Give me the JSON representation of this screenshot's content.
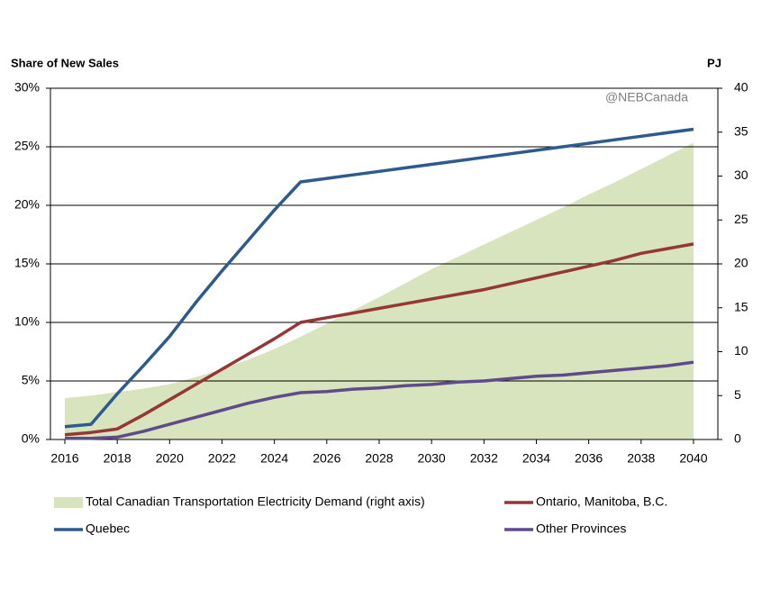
{
  "chart_data": {
    "type": "line",
    "y_label": "Share of New Sales",
    "y2_label": "PJ",
    "annotation": "@NEBCanada",
    "x": [
      2016,
      2017,
      2018,
      2019,
      2020,
      2021,
      2022,
      2023,
      2024,
      2025,
      2026,
      2027,
      2028,
      2029,
      2030,
      2031,
      2032,
      2033,
      2034,
      2035,
      2036,
      2037,
      2038,
      2039,
      2040
    ],
    "series": [
      {
        "name": "Total Canadian Transportation Electricity Demand (right axis)",
        "type": "area",
        "axis": "y2",
        "color": "#d7e4bd",
        "values": [
          4.7,
          5.0,
          5.4,
          5.8,
          6.3,
          7.1,
          8.0,
          9.1,
          10.3,
          11.7,
          13.2,
          14.7,
          16.2,
          17.8,
          19.4,
          20.8,
          22.2,
          23.6,
          25.0,
          26.4,
          27.9,
          29.3,
          30.8,
          32.3,
          33.8
        ]
      },
      {
        "name": "Ontario, Manitoba, B.C.",
        "color": "#953735",
        "values": [
          0.4,
          0.6,
          0.9,
          2.1,
          3.4,
          4.7,
          6.0,
          7.3,
          8.6,
          10.0,
          10.4,
          10.8,
          11.2,
          11.6,
          12.0,
          12.4,
          12.8,
          13.3,
          13.8,
          14.3,
          14.8,
          15.3,
          15.9,
          16.3,
          16.7
        ]
      },
      {
        "name": "Quebec",
        "color": "#2e5a8e",
        "values": [
          1.1,
          1.3,
          3.9,
          6.3,
          8.8,
          11.7,
          14.4,
          17.0,
          19.6,
          22.0,
          22.3,
          22.6,
          22.9,
          23.2,
          23.5,
          23.8,
          24.1,
          24.4,
          24.7,
          25.0,
          25.3,
          25.6,
          25.9,
          26.2,
          26.5
        ]
      },
      {
        "name": "Other Provinces",
        "color": "#5f4b8b",
        "values": [
          0.1,
          0.1,
          0.2,
          0.7,
          1.3,
          1.9,
          2.5,
          3.1,
          3.6,
          4.0,
          4.1,
          4.3,
          4.4,
          4.6,
          4.7,
          4.9,
          5.0,
          5.2,
          5.4,
          5.5,
          5.7,
          5.9,
          6.1,
          6.3,
          6.6
        ]
      }
    ],
    "xlim": [
      2015.45,
      2040.93
    ],
    "xticks": [
      2016,
      2018,
      2020,
      2022,
      2024,
      2026,
      2028,
      2030,
      2032,
      2034,
      2036,
      2038,
      2040
    ],
    "ylim": [
      0,
      30
    ],
    "yticks": [
      {
        "value": 0,
        "label": "0%"
      },
      {
        "value": 5,
        "label": "5%"
      },
      {
        "value": 10,
        "label": "10%"
      },
      {
        "value": 15,
        "label": "15%"
      },
      {
        "value": 20,
        "label": "20%"
      },
      {
        "value": 25,
        "label": "25%"
      },
      {
        "value": 30,
        "label": "30%"
      }
    ],
    "y2lim": [
      0,
      40
    ],
    "y2ticks": [
      0,
      5,
      10,
      15,
      20,
      25,
      30,
      35,
      40
    ],
    "grid": true
  }
}
